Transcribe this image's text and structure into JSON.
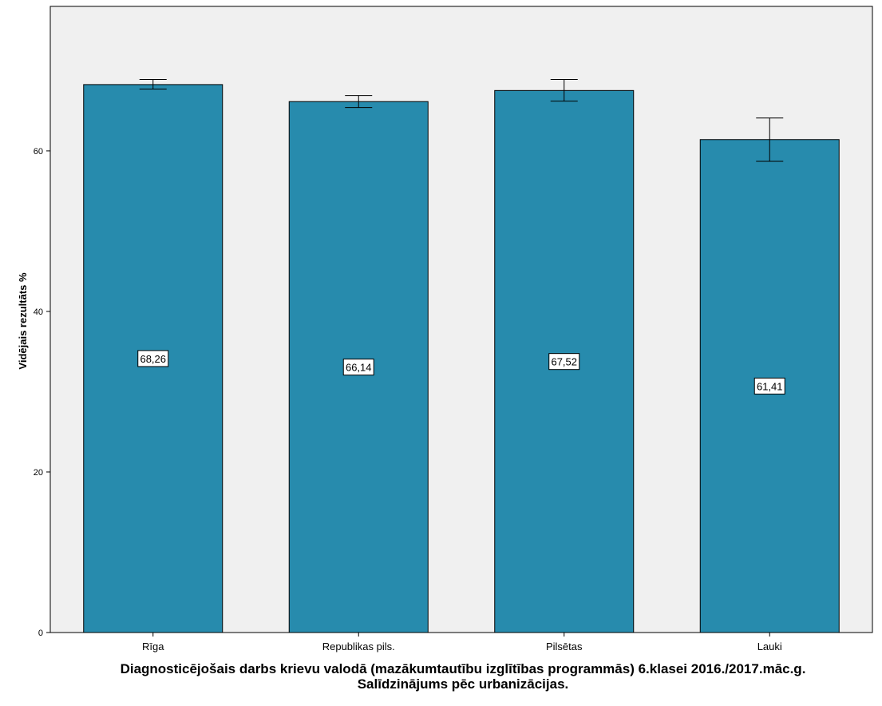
{
  "chart_data": {
    "type": "bar",
    "title_line1": "Diagnosticējošais darbs krievu valodā (mazākumtautību izglītības programmās) 6.klasei 2016./2017.māc.g.",
    "title_line2": "Salīdzinājums pēc urbanizācijas.",
    "xlabel": "",
    "ylabel": "Vidējais rezultāts %",
    "categories": [
      "Rīga",
      "Republikas pils.",
      "Pilsētas",
      "Lauki"
    ],
    "values": [
      68.26,
      66.14,
      67.52,
      61.41
    ],
    "value_labels": [
      "68,26",
      "66,14",
      "67,52",
      "61,41"
    ],
    "error_low": [
      67.7,
      65.4,
      66.2,
      58.7
    ],
    "error_high": [
      68.9,
      66.9,
      68.9,
      64.1
    ],
    "ylim": [
      0,
      78
    ],
    "yticks": [
      0,
      20,
      40,
      60
    ],
    "ytick_labels": [
      "0",
      "20",
      "40",
      "60"
    ],
    "grid": false,
    "colors": {
      "bar": "#278bad",
      "plot_background": "#f0f0f0",
      "outline": "#000000"
    }
  }
}
